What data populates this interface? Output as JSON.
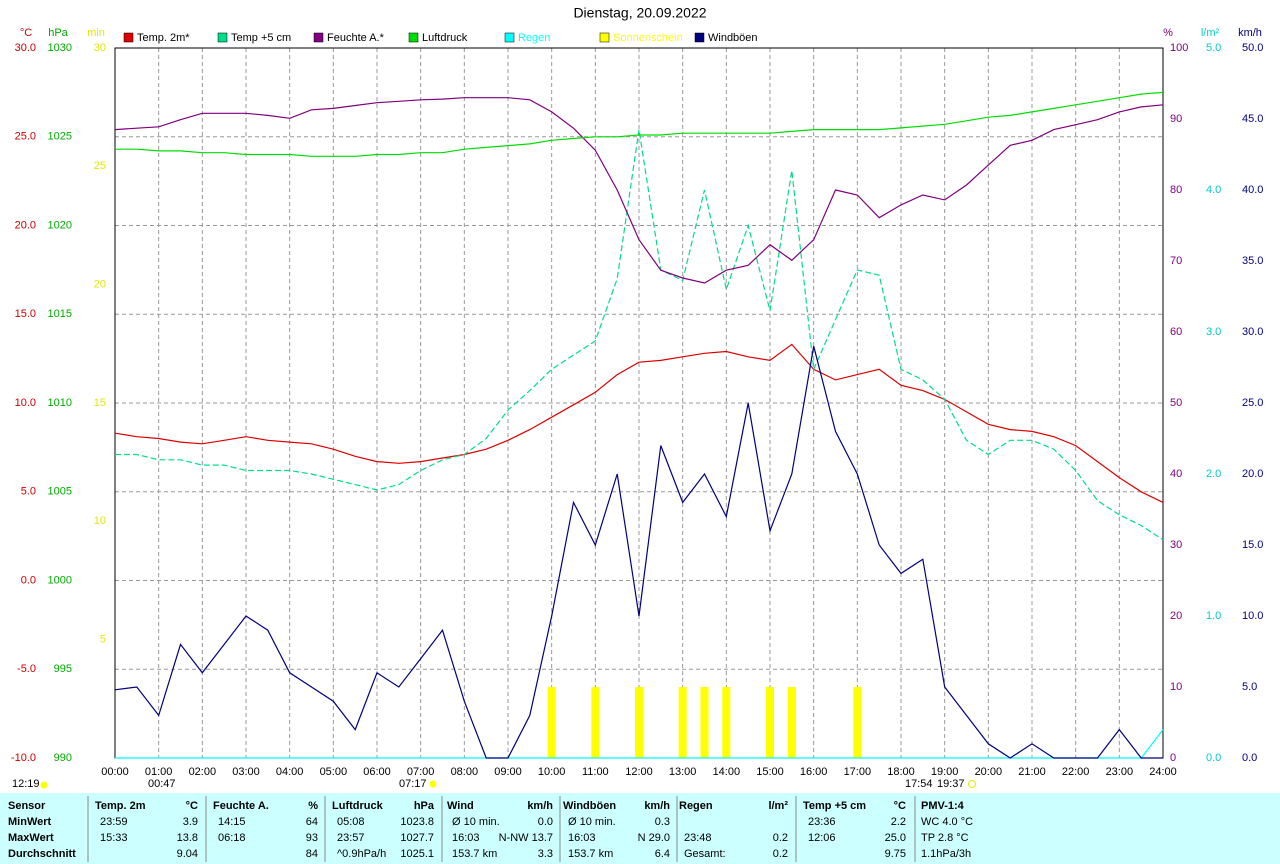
{
  "chart_data": {
    "type": "line",
    "title": "Dienstag, 20.09.2022",
    "xlim": [
      0,
      24
    ],
    "xticks": [
      {
        "value": 0,
        "label": "00:00"
      },
      {
        "value": 1,
        "label": "01:00"
      },
      {
        "value": 2,
        "label": "02:00"
      },
      {
        "value": 3,
        "label": "03:00"
      },
      {
        "value": 4,
        "label": "04:00"
      },
      {
        "value": 5,
        "label": "05:00"
      },
      {
        "value": 6,
        "label": "06:00"
      },
      {
        "value": 7,
        "label": "07:00"
      },
      {
        "value": 8,
        "label": "08:00"
      },
      {
        "value": 9,
        "label": "09:00"
      },
      {
        "value": 10,
        "label": "10:00"
      },
      {
        "value": 11,
        "label": "11:00"
      },
      {
        "value": 12,
        "label": "12:00"
      },
      {
        "value": 13,
        "label": "13:00"
      },
      {
        "value": 14,
        "label": "14:00"
      },
      {
        "value": 15,
        "label": "15:00"
      },
      {
        "value": 16,
        "label": "16:00"
      },
      {
        "value": 17,
        "label": "17:00"
      },
      {
        "value": 18,
        "label": "18:00"
      },
      {
        "value": 19,
        "label": "19:00"
      },
      {
        "value": 20,
        "label": "20:00"
      },
      {
        "value": 21,
        "label": "21:00"
      },
      {
        "value": 22,
        "label": "22:00"
      },
      {
        "value": 23,
        "label": "23:00"
      },
      {
        "value": 24,
        "label": "24:00"
      }
    ],
    "grid": true,
    "axes": [
      {
        "unit": "°C",
        "color": "#cc0000",
        "lim": [
          -10,
          30
        ],
        "ticks": [
          {
            "value": -10,
            "label": "-10.0"
          },
          {
            "value": -5,
            "label": "-5.0"
          },
          {
            "value": 0,
            "label": "0.0"
          },
          {
            "value": 5,
            "label": "5.0"
          },
          {
            "value": 10,
            "label": "10.0"
          },
          {
            "value": 15,
            "label": "15.0"
          },
          {
            "value": 20,
            "label": "20.0"
          },
          {
            "value": 25,
            "label": "25.0"
          },
          {
            "value": 30,
            "label": "30.0"
          }
        ]
      },
      {
        "unit": "hPa",
        "color": "#00aa00",
        "lim": [
          990,
          1030
        ],
        "ticks": [
          990,
          995,
          1000,
          1005,
          1010,
          1015,
          1020,
          1025,
          1030
        ]
      },
      {
        "unit": "min",
        "color": "#e6e600",
        "lim": [
          0,
          30
        ],
        "ticks": [
          5,
          10,
          15,
          20,
          25,
          30
        ]
      },
      {
        "unit": "%",
        "color": "#800080",
        "lim": [
          0,
          100
        ],
        "ticks": [
          0,
          10,
          20,
          30,
          40,
          50,
          60,
          70,
          80,
          90,
          100
        ]
      },
      {
        "unit": "l/m²",
        "color": "#00cccc",
        "lim": [
          0,
          5
        ],
        "ticks": [
          {
            "value": 0,
            "label": "0.0"
          },
          {
            "value": 1,
            "label": "1.0"
          },
          {
            "value": 2,
            "label": "2.0"
          },
          {
            "value": 3,
            "label": "3.0"
          },
          {
            "value": 4,
            "label": "4.0"
          },
          {
            "value": 5,
            "label": "5.0"
          }
        ]
      },
      {
        "unit": "km/h",
        "color": "#000080",
        "lim": [
          0,
          50
        ],
        "ticks": [
          {
            "value": 0,
            "label": "0.0"
          },
          {
            "value": 5,
            "label": "5.0"
          },
          {
            "value": 10,
            "label": "10.0"
          },
          {
            "value": 15,
            "label": "15.0"
          },
          {
            "value": 20,
            "label": "20.0"
          },
          {
            "value": 25,
            "label": "25.0"
          },
          {
            "value": 30,
            "label": "30.0"
          },
          {
            "value": 35,
            "label": "35.0"
          },
          {
            "value": 40,
            "label": "40.0"
          },
          {
            "value": 45,
            "label": "45.0"
          },
          {
            "value": 50,
            "label": "50.0"
          }
        ]
      }
    ],
    "x": [
      0,
      0.5,
      1,
      1.5,
      2,
      2.5,
      3,
      3.5,
      4,
      4.5,
      5,
      5.5,
      6,
      6.5,
      7,
      7.5,
      8,
      8.5,
      9,
      9.5,
      10,
      10.5,
      11,
      11.5,
      12,
      12.5,
      13,
      13.5,
      14,
      14.5,
      15,
      15.5,
      16,
      16.5,
      17,
      17.5,
      18,
      18.5,
      19,
      19.5,
      20,
      20.5,
      21,
      21.5,
      22,
      22.5,
      23,
      23.5,
      24
    ],
    "series": [
      {
        "name": "Temp. 2m*",
        "color": "#dd0000",
        "axis": 0,
        "style": "line",
        "values": [
          8.3,
          8.1,
          8.0,
          7.8,
          7.7,
          7.9,
          8.1,
          7.9,
          7.8,
          7.7,
          7.4,
          7.0,
          6.7,
          6.6,
          6.7,
          6.9,
          7.1,
          7.4,
          7.9,
          8.5,
          9.2,
          9.9,
          10.6,
          11.6,
          12.3,
          12.4,
          12.6,
          12.8,
          12.9,
          12.6,
          12.4,
          13.3,
          11.9,
          11.3,
          11.6,
          11.9,
          11.0,
          10.7,
          10.2,
          9.5,
          8.8,
          8.5,
          8.4,
          8.1,
          7.6,
          6.7,
          5.8,
          5.0,
          4.4
        ]
      },
      {
        "name": "Temp +5 cm",
        "color": "#00dd88",
        "axis": 0,
        "style": "dash",
        "values": [
          7.1,
          7.1,
          6.8,
          6.8,
          6.5,
          6.5,
          6.2,
          6.2,
          6.2,
          6.0,
          5.7,
          5.4,
          5.1,
          5.4,
          6.2,
          6.8,
          7.1,
          8.0,
          9.6,
          10.7,
          11.9,
          12.7,
          13.5,
          17.0,
          25.4,
          17.5,
          16.9,
          22.0,
          16.4,
          20.0,
          15.2,
          23.1,
          11.9,
          14.7,
          17.5,
          17.2,
          11.9,
          11.3,
          10.2,
          7.9,
          7.1,
          7.9,
          7.9,
          7.4,
          6.2,
          4.5,
          3.7,
          3.1,
          2.3
        ]
      },
      {
        "name": "Feuchte A.*",
        "color": "#800080",
        "axis": 3,
        "style": "line",
        "values": [
          88.5,
          88.7,
          88.9,
          89.9,
          90.8,
          90.8,
          90.8,
          90.5,
          90.1,
          91.3,
          91.5,
          91.9,
          92.3,
          92.5,
          92.7,
          92.8,
          93,
          93,
          93,
          92.7,
          91,
          88.7,
          85.6,
          80,
          73,
          68.7,
          67.6,
          66.9,
          68.7,
          69.4,
          72.3,
          70.1,
          73,
          80,
          79.3,
          76.1,
          77.9,
          79.3,
          78.6,
          80.7,
          83.5,
          86.3,
          87,
          88.5,
          89.2,
          89.9,
          91,
          91.7,
          92
        ]
      },
      {
        "name": "Luftdruck",
        "color": "#00dd00",
        "axis": 1,
        "style": "line",
        "values": [
          1024.3,
          1024.3,
          1024.2,
          1024.2,
          1024.1,
          1024.1,
          1024.0,
          1024.0,
          1024.0,
          1023.9,
          1023.9,
          1023.9,
          1024.0,
          1024.0,
          1024.1,
          1024.1,
          1024.3,
          1024.4,
          1024.5,
          1024.6,
          1024.8,
          1024.9,
          1025.0,
          1025.0,
          1025.1,
          1025.1,
          1025.2,
          1025.2,
          1025.2,
          1025.2,
          1025.2,
          1025.3,
          1025.4,
          1025.4,
          1025.4,
          1025.4,
          1025.5,
          1025.6,
          1025.7,
          1025.9,
          1026.1,
          1026.2,
          1026.4,
          1026.6,
          1026.8,
          1027.0,
          1027.2,
          1027.4,
          1027.5
        ]
      },
      {
        "name": "Regen",
        "color": "#00ffff",
        "axis": 4,
        "style": "line",
        "values": [
          0,
          0,
          0,
          0,
          0,
          0,
          0,
          0,
          0,
          0,
          0,
          0,
          0,
          0,
          0,
          0,
          0,
          0,
          0,
          0,
          0,
          0,
          0,
          0,
          0,
          0,
          0,
          0,
          0,
          0,
          0,
          0,
          0,
          0,
          0,
          0,
          0,
          0,
          0,
          0,
          0,
          0,
          0,
          0,
          0,
          0,
          0,
          0,
          0.2
        ]
      },
      {
        "name": "Sonnenschein",
        "color": "#ffff00",
        "axis": 2,
        "style": "bar",
        "values": [
          0,
          0,
          0,
          0,
          0,
          0,
          0,
          0,
          0,
          0,
          0,
          0,
          0,
          0,
          0,
          0,
          0,
          0,
          0,
          0,
          3,
          0,
          3,
          0,
          3,
          0,
          3,
          3,
          3,
          0,
          3,
          3,
          0,
          0,
          3,
          0,
          0,
          0,
          0,
          0,
          0,
          0,
          0,
          0,
          0,
          0,
          0,
          0,
          0
        ]
      },
      {
        "name": "Windböen",
        "color": "#000080",
        "axis": 5,
        "style": "line",
        "values": [
          4.8,
          5,
          3,
          8,
          6,
          8,
          10,
          9,
          6,
          5,
          4,
          2,
          6,
          5,
          7,
          9,
          4,
          0,
          0,
          3,
          10,
          18,
          15,
          20,
          10,
          22,
          18,
          20,
          17,
          25,
          16,
          20,
          29,
          23,
          20,
          15,
          13,
          14,
          5,
          3,
          1,
          0,
          1,
          0,
          0,
          0,
          2,
          0,
          0
        ]
      }
    ],
    "annotations": [
      "12:19",
      "00:47",
      "07:17",
      "17:54",
      "19:37"
    ],
    "table": {
      "header": [
        "Sensor",
        "Temp. 2m",
        "°C",
        "Feuchte A.",
        "%",
        "Luftdruck",
        "hPa",
        "Wind",
        "km/h",
        "Windböen",
        "km/h",
        "Regen",
        "l/m²",
        "Temp +5 cm",
        "°C",
        "PMV-1:4"
      ],
      "rows": [
        [
          "MinWert",
          "23:59",
          "3.9",
          "14:15",
          "64",
          "05:08",
          "1023.8",
          "Ø 10 min.",
          "0.0",
          "Ø 10 min.",
          "0.3",
          null,
          null,
          "23:36",
          "2.2",
          "WC 4.0 °C"
        ],
        [
          "MaxWert",
          "15:33",
          "13.8",
          "06:18",
          "93",
          "23:57",
          "1027.7",
          "16:03",
          "N-NW 13.7",
          "16:03",
          "N 29.0",
          "23:48",
          "0.2",
          "12:06",
          "25.0",
          "TP 2.8 °C"
        ],
        [
          "Durchschnitt",
          null,
          "9.04",
          null,
          "84",
          "^0.9hPa/h",
          "1025.1",
          "153.7 km",
          "3.3",
          "153.7 km",
          "6.4",
          "Gesamt:",
          "0.2",
          null,
          "9.75",
          "1.1hPa/3h"
        ]
      ]
    }
  }
}
